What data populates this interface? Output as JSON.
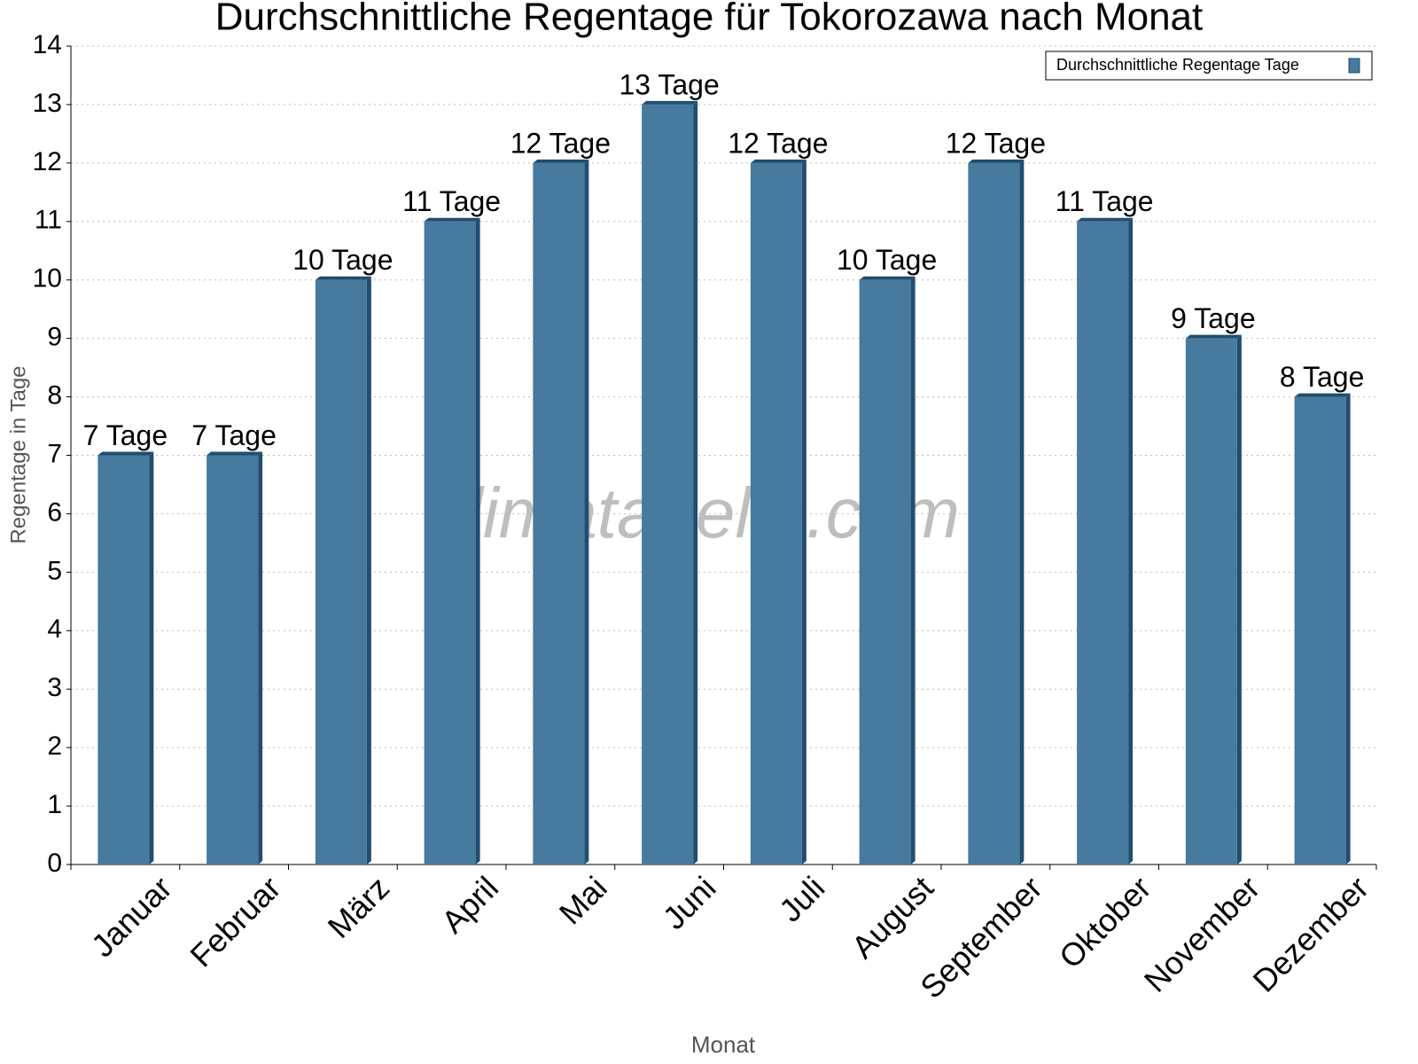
{
  "chart_data": {
    "type": "bar",
    "title": "Durchschnittliche Regentage für Tokorozawa nach Monat",
    "x_label": "Monat",
    "y_label": "Regentage in Tage",
    "watermark": "klimatabelle.com",
    "categories": [
      "Januar",
      "Februar",
      "März",
      "April",
      "Mai",
      "Juni",
      "Juli",
      "August",
      "September",
      "Oktober",
      "November",
      "Dezember"
    ],
    "series": [
      {
        "name": "Durchschnittliche Regentage Tage",
        "color": "#467a9e",
        "values": [
          7,
          7,
          10,
          11,
          12,
          13,
          12,
          10,
          12,
          11,
          9,
          8
        ],
        "value_labels": [
          "7 Tage",
          "7 Tage",
          "10 Tage",
          "11 Tage",
          "12 Tage",
          "13 Tage",
          "12 Tage",
          "10 Tage",
          "12 Tage",
          "11 Tage",
          "9 Tage",
          "8 Tage"
        ]
      }
    ],
    "ylim": [
      0,
      14
    ],
    "yticks": [
      0,
      1,
      2,
      3,
      4,
      5,
      6,
      7,
      8,
      9,
      10,
      11,
      12,
      13,
      14
    ],
    "grid": true,
    "legend": "top-right"
  }
}
